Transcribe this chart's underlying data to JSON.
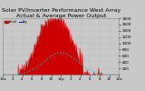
{
  "title": "Solar PV/Inverter Performance West Array Actual & Average Power Output",
  "bg_color": "#c8c8c8",
  "plot_bg": "#c8c8c8",
  "grid_color": "#aaaaaa",
  "bar_color": "#cc0000",
  "avg_line_color": "#00cccc",
  "ylim": [
    0,
    1800
  ],
  "yticks": [
    200,
    400,
    600,
    800,
    1000,
    1200,
    1400,
    1600,
    1800
  ],
  "n_points": 288,
  "avg_max": 700,
  "title_fontsize": 4.5,
  "tick_fontsize": 3.0
}
